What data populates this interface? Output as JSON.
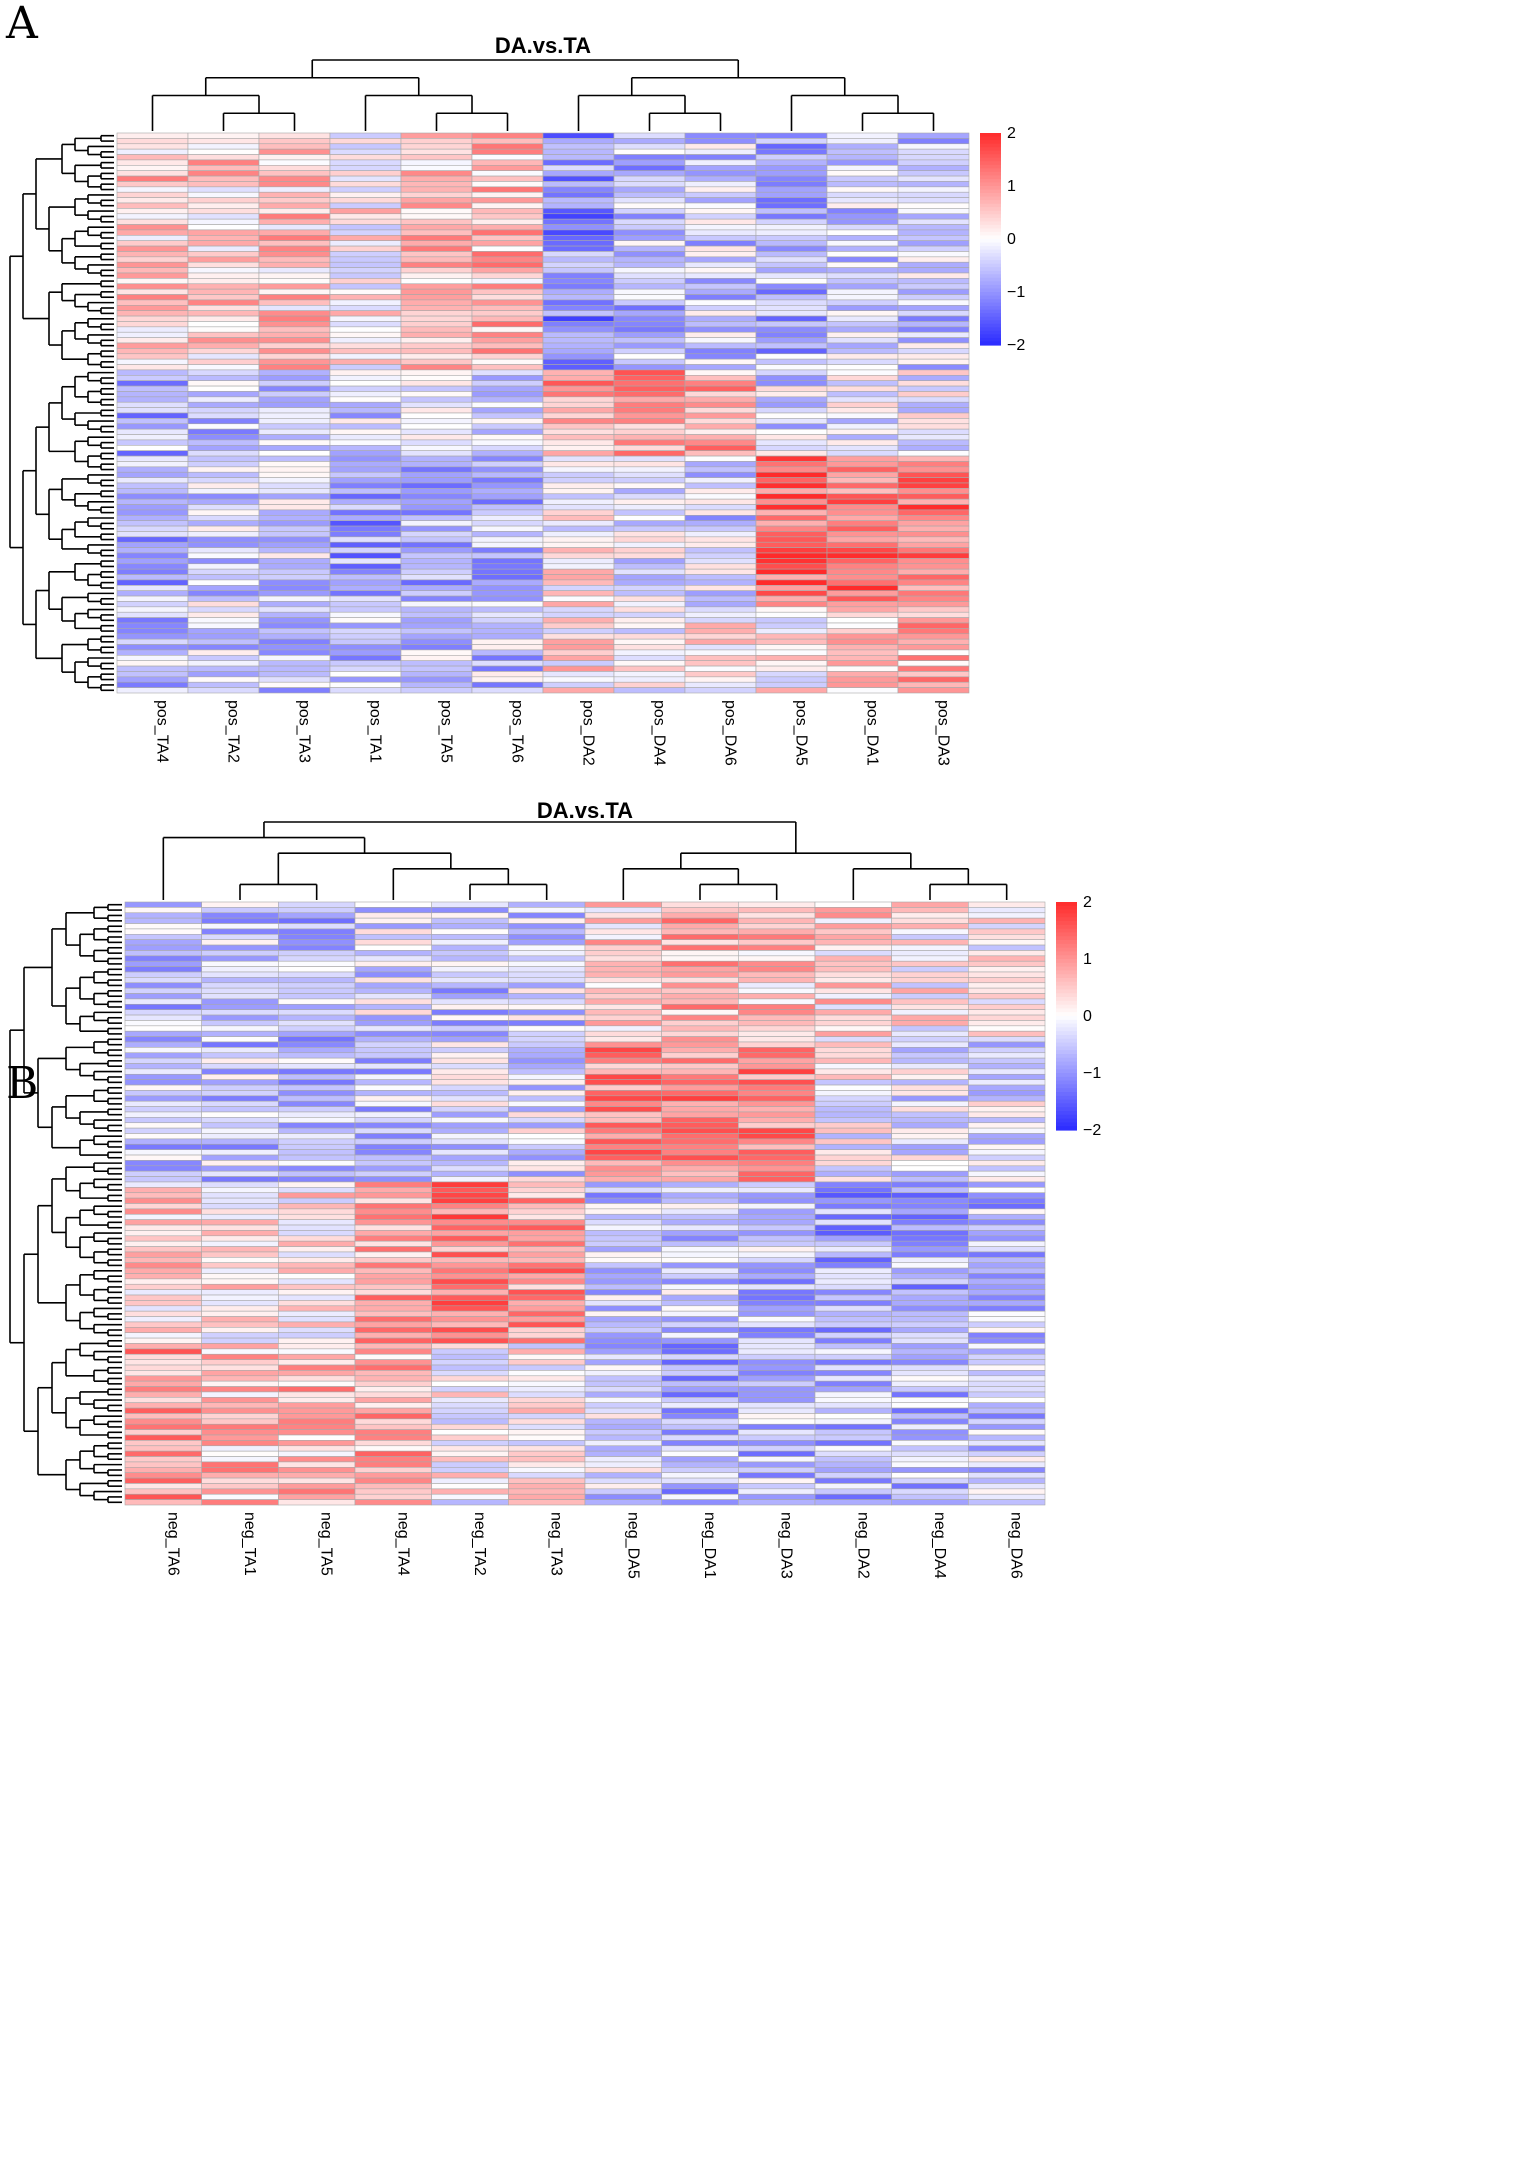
{
  "chart_data": [
    {
      "panel": "A",
      "type": "heatmap",
      "title": "DA.vs.TA",
      "columns": [
        "pos_TA4",
        "pos_TA2",
        "pos_TA3",
        "pos_TA1",
        "pos_TA5",
        "pos_TA6",
        "pos_DA2",
        "pos_DA4",
        "pos_DA6",
        "pos_DA5",
        "pos_DA1",
        "pos_DA3"
      ],
      "row_count": 104,
      "color_scale": {
        "min": -2,
        "max": 2,
        "ticks": [
          "2",
          "1",
          "0",
          "−1",
          "−2"
        ],
        "colors": {
          "low": "#2a2aff",
          "mid": "#ffffff",
          "high": "#ff2a2a"
        }
      },
      "cluster_blocks": [
        {
          "rows": [
            0,
            44
          ],
          "values": [
            0.55,
            0.45,
            0.5,
            0.15,
            0.6,
            0.65,
            -1.05,
            -0.65,
            -0.5,
            -0.75,
            -0.55,
            -0.5
          ]
        },
        {
          "rows": [
            44,
            60
          ],
          "values": [
            -0.75,
            -0.6,
            -0.55,
            -0.45,
            -0.5,
            -0.55,
            0.85,
            0.9,
            0.8,
            -0.4,
            -0.3,
            -0.2
          ]
        },
        {
          "rows": [
            60,
            88
          ],
          "values": [
            -0.75,
            -0.4,
            -0.45,
            -0.9,
            -0.8,
            -0.7,
            0.1,
            -0.3,
            -0.45,
            1.4,
            1.35,
            1.25
          ]
        },
        {
          "rows": [
            88,
            104
          ],
          "values": [
            -0.6,
            -0.45,
            -0.5,
            -0.6,
            -0.6,
            -0.55,
            0.25,
            0.1,
            0.3,
            0.1,
            0.6,
            0.7
          ]
        }
      ]
    },
    {
      "panel": "B",
      "type": "heatmap",
      "title": "DA.vs.TA",
      "columns": [
        "neg_TA6",
        "neg_TA1",
        "neg_TA5",
        "neg_TA4",
        "neg_TA2",
        "neg_TA3",
        "neg_DA5",
        "neg_DA1",
        "neg_DA3",
        "neg_DA2",
        "neg_DA4",
        "neg_DA6"
      ],
      "row_count": 112,
      "color_scale": {
        "min": -2,
        "max": 2,
        "ticks": [
          "2",
          "1",
          "0",
          "−1",
          "−2"
        ],
        "colors": {
          "low": "#2a2aff",
          "mid": "#ffffff",
          "high": "#ff2a2a"
        }
      },
      "cluster_blocks": [
        {
          "rows": [
            0,
            26
          ],
          "values": [
            -0.6,
            -0.5,
            -0.65,
            -0.35,
            -0.55,
            -0.45,
            0.45,
            0.75,
            0.55,
            0.4,
            0.15,
            0.05
          ]
        },
        {
          "rows": [
            26,
            52
          ],
          "values": [
            -0.55,
            -0.55,
            -0.65,
            -0.55,
            -0.35,
            -0.3,
            1.1,
            1.15,
            1.1,
            -0.05,
            -0.25,
            -0.25
          ]
        },
        {
          "rows": [
            52,
            82
          ],
          "values": [
            0.45,
            0.2,
            0.25,
            0.85,
            1.15,
            0.95,
            -0.55,
            -0.55,
            -0.6,
            -0.85,
            -0.8,
            -0.65
          ]
        },
        {
          "rows": [
            82,
            112
          ],
          "values": [
            0.95,
            0.6,
            0.65,
            0.75,
            0.05,
            0.15,
            -0.4,
            -0.7,
            -0.65,
            -0.7,
            -0.6,
            -0.55
          ]
        }
      ]
    }
  ],
  "panels": {
    "A": {
      "letter": "A"
    },
    "B": {
      "letter": "B"
    }
  }
}
